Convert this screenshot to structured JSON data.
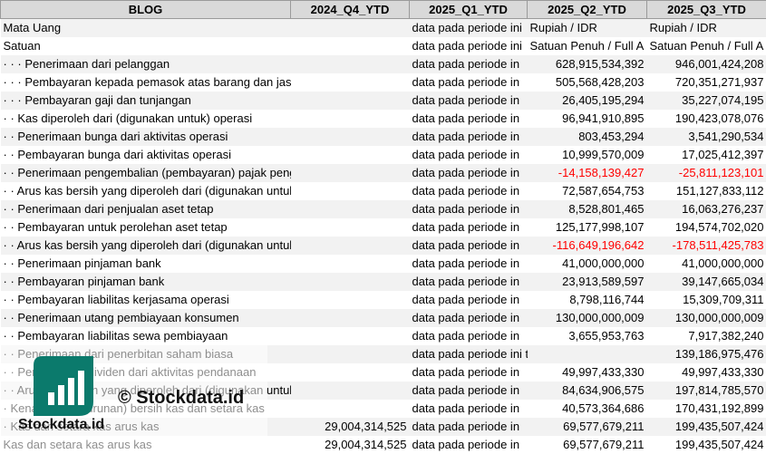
{
  "headers": [
    "BLOG",
    "2024_Q4_YTD",
    "2025_Q1_YTD",
    "2025_Q2_YTD",
    "2025_Q3_YTD"
  ],
  "rows": [
    {
      "label": "Mata Uang",
      "c1": "",
      "c2": "data pada periode ini",
      "c3": "Rupiah / IDR",
      "c4": "Rupiah / IDR"
    },
    {
      "label": "Satuan",
      "c1": "",
      "c2": "data pada periode ini",
      "c3": "Satuan Penuh / Full A",
      "c4": "Satuan Penuh / Full A"
    },
    {
      "label": "· · · Penerimaan dari pelanggan",
      "c1": "",
      "c2": "data pada periode in",
      "c3": "628,915,534,392",
      "c4": "946,001,424,208"
    },
    {
      "label": "· · · Pembayaran kepada pemasok atas barang dan jasa",
      "c1": "",
      "c2": "data pada periode in",
      "c3": "505,568,428,203",
      "c4": "720,351,271,937"
    },
    {
      "label": "· · · Pembayaran gaji dan tunjangan",
      "c1": "",
      "c2": "data pada periode in",
      "c3": "26,405,195,294",
      "c4": "35,227,074,195"
    },
    {
      "label": "· · Kas diperoleh dari (digunakan untuk) operasi",
      "c1": "",
      "c2": "data pada periode in",
      "c3": "96,941,910,895",
      "c4": "190,423,078,076"
    },
    {
      "label": "· · Penerimaan bunga dari aktivitas operasi",
      "c1": "",
      "c2": "data pada periode in",
      "c3": "803,453,294",
      "c4": "3,541,290,534"
    },
    {
      "label": "· · Pembayaran bunga dari aktivitas operasi",
      "c1": "",
      "c2": "data pada periode in",
      "c3": "10,999,570,009",
      "c4": "17,025,412,397"
    },
    {
      "label": "· · Penerimaan pengembalian (pembayaran) pajak penghasilan dari aktivi",
      "c1": "",
      "c2": "data pada periode in",
      "c3": "-14,158,139,427",
      "c4": "-25,811,123,101"
    },
    {
      "label": "· · Arus kas bersih yang diperoleh dari (digunakan untuk) aktivitas operasi",
      "c1": "",
      "c2": "data pada periode in",
      "c3": "72,587,654,753",
      "c4": "151,127,833,112"
    },
    {
      "label": "· · Penerimaan dari penjualan aset tetap",
      "c1": "",
      "c2": "data pada periode in",
      "c3": "8,528,801,465",
      "c4": "16,063,276,237"
    },
    {
      "label": "· · Pembayaran untuk perolehan aset tetap",
      "c1": "",
      "c2": "data pada periode in",
      "c3": "125,177,998,107",
      "c4": "194,574,702,020"
    },
    {
      "label": "· · Arus kas bersih yang diperoleh dari (digunakan untuk) aktivitas investa",
      "c1": "",
      "c2": "data pada periode in",
      "c3": "-116,649,196,642",
      "c4": "-178,511,425,783"
    },
    {
      "label": "· · Penerimaan pinjaman bank",
      "c1": "",
      "c2": "data pada periode in",
      "c3": "41,000,000,000",
      "c4": "41,000,000,000"
    },
    {
      "label": "· · Pembayaran pinjaman bank",
      "c1": "",
      "c2": "data pada periode in",
      "c3": "23,913,589,597",
      "c4": "39,147,665,034"
    },
    {
      "label": "· · Pembayaran liabilitas kerjasama operasi",
      "c1": "",
      "c2": "data pada periode in",
      "c3": "8,798,116,744",
      "c4": "15,309,709,311"
    },
    {
      "label": "· · Penerimaan utang pembiayaan konsumen",
      "c1": "",
      "c2": "data pada periode in",
      "c3": "130,000,000,009",
      "c4": "130,000,000,009"
    },
    {
      "label": "· · Pembayaran liabilitas sewa pembiayaan",
      "c1": "",
      "c2": "data pada periode in",
      "c3": "3,655,953,763",
      "c4": "7,917,382,240"
    },
    {
      "label": "· · Penerimaan dari penerbitan saham biasa",
      "c1": "",
      "c2": "data pada periode ini tidak tersedia",
      "c3": "",
      "c4": "139,186,975,476"
    },
    {
      "label": "· · Pembayaran dividen dari aktivitas pendanaan",
      "c1": "",
      "c2": "data pada periode in",
      "c3": "49,997,433,330",
      "c4": "49,997,433,330"
    },
    {
      "label": "· · Arus kas bersih yang diperoleh dari (digunakan untuk) aktivitas pendar",
      "c1": "",
      "c2": "data pada periode in",
      "c3": "84,634,906,575",
      "c4": "197,814,785,570"
    },
    {
      "label": "· Kenaikan (penurunan) bersih kas dan setara kas",
      "c1": "",
      "c2": "data pada periode in",
      "c3": "40,573,364,686",
      "c4": "170,431,192,899"
    },
    {
      "label": "· Kas dan setara kas arus kas",
      "c1": "29,004,314,525",
      "c2": "data pada periode in",
      "c3": "69,577,679,211",
      "c4": "199,435,507,424"
    },
    {
      "label": "Kas dan setara kas arus kas",
      "c1": "29,004,314,525",
      "c2": "data pada periode in",
      "c3": "69,577,679,211",
      "c4": "199,435,507,424"
    }
  ],
  "negative_color": "#ff0000",
  "watermark": {
    "text": "© Stockdata.id",
    "brand": "Stockdata.id",
    "logo_color": "#0b7a6c"
  }
}
